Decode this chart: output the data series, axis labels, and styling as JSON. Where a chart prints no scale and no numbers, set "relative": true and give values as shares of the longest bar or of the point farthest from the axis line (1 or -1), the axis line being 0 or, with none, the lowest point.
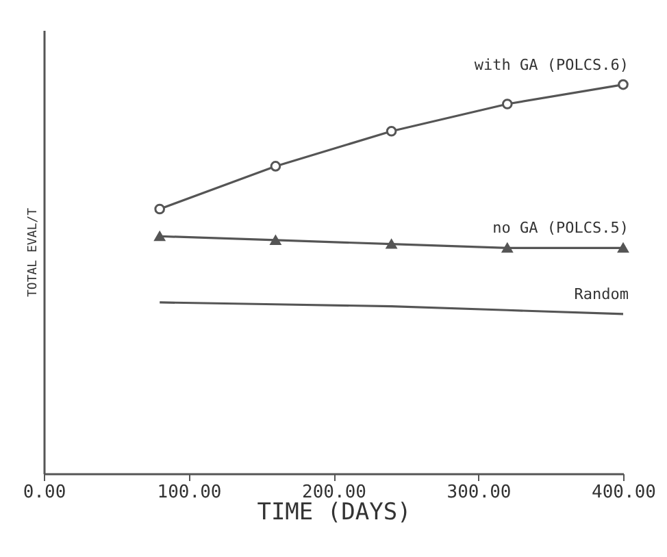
{
  "chart_data": {
    "type": "line",
    "relative": true,
    "xlabel": "TIME (DAYS)",
    "ylabel": "TOTAL EVAL/T",
    "x": [
      80,
      160,
      240,
      320,
      400
    ],
    "xlim": [
      0,
      400
    ],
    "xticks": [
      {
        "value": 0,
        "label": "0.00"
      },
      {
        "value": 100,
        "label": "100.00"
      },
      {
        "value": 200,
        "label": "200.00"
      },
      {
        "value": 300,
        "label": "300.00"
      },
      {
        "value": 400,
        "label": "400.00"
      }
    ],
    "series": [
      {
        "name": "with GA (POLCS.6)",
        "color": "#555555",
        "marker": "circle",
        "values": [
          0.68,
          0.79,
          0.88,
          0.95,
          1.0
        ]
      },
      {
        "name": "no GA (POLCS.5)",
        "color": "#555555",
        "marker": "triangle",
        "values": [
          0.61,
          0.6,
          0.59,
          0.58,
          0.58
        ]
      },
      {
        "name": "Random",
        "color": "#555555",
        "values": [
          0.44,
          0.435,
          0.43,
          0.42,
          0.41
        ]
      }
    ],
    "marker": "none"
  }
}
